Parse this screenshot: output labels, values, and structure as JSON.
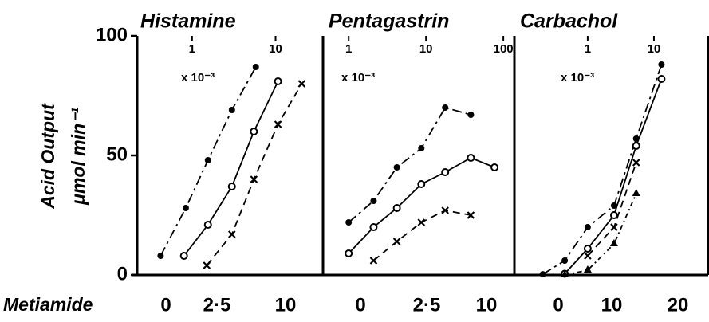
{
  "chart_data": [
    {
      "type": "scatter",
      "title": "Histamine",
      "log_x": true,
      "xlim": [
        0.22,
        37
      ],
      "xticks": [
        1,
        10
      ],
      "x_multiplier": "x 10⁻³",
      "ylim": [
        0,
        100
      ],
      "yticks": [
        0,
        50,
        100
      ],
      "y_label": "Acid Output",
      "y_unit": "μmol min⁻¹",
      "x_label": "Metiamide",
      "metiamide_labels": [
        "0",
        "2·5",
        "10"
      ],
      "series": [
        {
          "marker": "filled-circle",
          "color": "#000",
          "x": [
            0.42,
            0.84,
            1.55,
            3.0,
            5.8
          ],
          "values": [
            8,
            28,
            48,
            69,
            87
          ]
        },
        {
          "marker": "open-circle",
          "color": "#000",
          "x": [
            0.8,
            1.55,
            3.0,
            5.5,
            10.7
          ],
          "values": [
            8,
            21,
            37,
            60,
            81
          ]
        },
        {
          "marker": "cross",
          "color": "#000",
          "x": [
            1.5,
            3.0,
            5.5,
            10.7,
            20.6
          ],
          "values": [
            4,
            17,
            40,
            63,
            80
          ]
        }
      ]
    },
    {
      "type": "scatter",
      "title": "Pentagastrin",
      "log_x": true,
      "xlim": [
        0.5,
        139
      ],
      "xticks": [
        1,
        10,
        100
      ],
      "x_multiplier": "x 10⁻³",
      "ylim": [
        0,
        100
      ],
      "metiamide_labels": [
        "0",
        "2·5",
        "10"
      ],
      "series": [
        {
          "marker": "filled-circle",
          "color": "#000",
          "x": [
            1,
            2.1,
            4.2,
            8.7,
            17.7,
            38
          ],
          "values": [
            22,
            31,
            45,
            53,
            70,
            67
          ]
        },
        {
          "marker": "open-circle",
          "color": "#000",
          "x": [
            1,
            2.1,
            4.2,
            8.7,
            17.7,
            38,
            77
          ],
          "values": [
            9,
            20,
            28,
            38,
            43,
            49,
            45
          ]
        },
        {
          "marker": "cross",
          "color": "#000",
          "x": [
            2.1,
            4.2,
            8.7,
            17.7,
            38
          ],
          "values": [
            6,
            14,
            22,
            27,
            25
          ]
        }
      ]
    },
    {
      "type": "scatter",
      "title": "Carbachol",
      "log_x": true,
      "xlim": [
        0.085,
        66
      ],
      "xticks": [
        1,
        10
      ],
      "x_multiplier": "x 10⁻³",
      "ylim": [
        0,
        100
      ],
      "metiamide_labels": [
        "0",
        "10",
        "20"
      ],
      "series": [
        {
          "marker": "filled-circle",
          "color": "#000",
          "x": [
            0.21,
            0.45,
            1.0,
            2.5,
            5.4,
            13
          ],
          "values": [
            0.3,
            6,
            20,
            29,
            57,
            88
          ]
        },
        {
          "marker": "open-circle",
          "color": "#000",
          "x": [
            0.45,
            1.0,
            2.5,
            5.4,
            13
          ],
          "values": [
            0.5,
            11,
            25,
            54,
            82
          ]
        },
        {
          "marker": "cross",
          "color": "#000",
          "x": [
            1.0,
            2.5,
            5.4
          ],
          "values": [
            8,
            20,
            47
          ]
        },
        {
          "marker": "triangle",
          "color": "#000",
          "x": [
            0.45,
            1.0,
            2.5,
            5.4
          ],
          "values": [
            0,
            2,
            13,
            34
          ]
        }
      ]
    }
  ]
}
